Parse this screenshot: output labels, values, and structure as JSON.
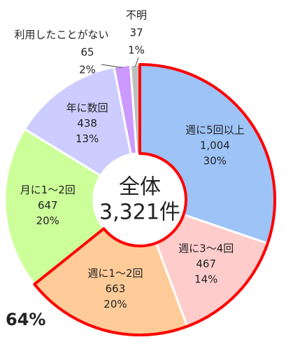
{
  "chart_data": {
    "type": "donut",
    "categories": [
      "週に5回以上",
      "週に3～4回",
      "週に1～2回",
      "月に1～2回",
      "年に数回",
      "利用したことがない",
      "不明"
    ],
    "values": [
      1004,
      467,
      663,
      647,
      438,
      65,
      37
    ],
    "value_labels": [
      "1,004",
      "467",
      "663",
      "647",
      "438",
      "65",
      "37"
    ],
    "percent_values": [
      30,
      14,
      20,
      20,
      13,
      2,
      1
    ],
    "percent_labels": [
      "30%",
      "14%",
      "20%",
      "20%",
      "13%",
      "2%",
      "1%"
    ],
    "colors": [
      "#9dc3f7",
      "#ffcccc",
      "#ffcc99",
      "#ccff99",
      "#ccccff",
      "#cc99ff",
      "#bfbfbf"
    ],
    "center_label": [
      "全体",
      "3,321件"
    ],
    "highlight_label": "64%",
    "highlight_color": "#ff0000"
  }
}
